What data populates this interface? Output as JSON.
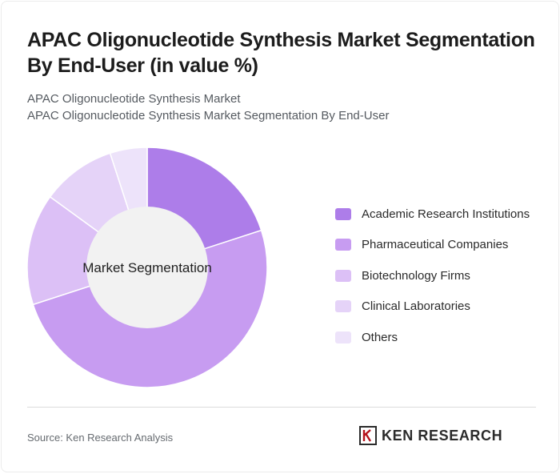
{
  "header": {
    "title": "APAC Oligonucleotide Synthesis Market Segmentation By End-User (in value %)",
    "subtitle_line1": "APAC Oligonucleotide Synthesis Market",
    "subtitle_line2": "APAC Oligonucleotide Synthesis Market Segmentation By End-User"
  },
  "footer": {
    "source": "Source: Ken Research Analysis",
    "logo_text": "KEN RESEARCH"
  },
  "chart_data": {
    "type": "pie",
    "variant": "donut",
    "center_label": "Market Segmentation",
    "legend_position": "right",
    "categories": [
      "Academic Research Institutions",
      "Pharmaceutical Companies",
      "Biotechnology Firms",
      "Clinical Laboratories",
      "Others"
    ],
    "values": [
      20,
      50,
      15,
      10,
      5
    ],
    "colors": [
      "#ad7de9",
      "#c79cf1",
      "#dcc0f6",
      "#e5d3f8",
      "#ede3fa"
    ]
  }
}
